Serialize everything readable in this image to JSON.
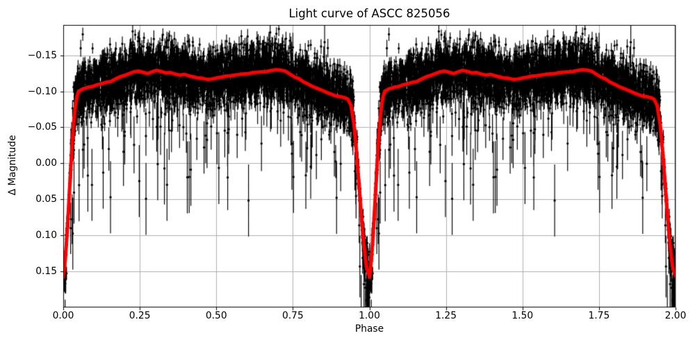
{
  "chart_data": {
    "type": "scatter",
    "title": "Light curve of ASCC 825056",
    "xlabel": "Phase",
    "ylabel": "Δ Magnitude",
    "xlim": [
      0.0,
      2.0
    ],
    "ylim": {
      "top": -0.192,
      "bottom": 0.2
    },
    "y_inverted": true,
    "grid": true,
    "background": "#ffffff",
    "grid_color": "#b0b0b0",
    "spine_color": "#000000",
    "xticks": {
      "values": [
        0.0,
        0.25,
        0.5,
        0.75,
        1.0,
        1.25,
        1.5,
        1.75,
        2.0
      ],
      "labels": [
        "0.00",
        "0.25",
        "0.50",
        "0.75",
        "1.00",
        "1.25",
        "1.50",
        "1.75",
        "2.00"
      ]
    },
    "yticks": {
      "values": [
        -0.15,
        -0.1,
        -0.05,
        0.0,
        0.05,
        0.1,
        0.15
      ],
      "labels": [
        "−0.15",
        "−0.10",
        "−0.05",
        "0.00",
        "0.05",
        "0.10",
        "0.15"
      ]
    },
    "series": [
      {
        "name": "observations",
        "type": "scatter_errorbar",
        "color": "#000000",
        "cycles": 2,
        "n_per_cycle": 4500,
        "seed": 12345,
        "noise_sigma": 0.019,
        "mid_sigma_scale": 0.6,
        "deep_sigma_scale": 0.8,
        "faint_outlier_fraction": 0.06,
        "faint_outlier_scale": 0.04,
        "bright_outlier_fraction": 0.008,
        "bright_outlier_scale": 0.015,
        "deep_tail_fraction": 0.3,
        "deep_tail_scale": 0.025,
        "errorbar_base": 0.007,
        "errorbar_jitter": 0.005,
        "errorbar_outlier_factor": 0.35,
        "errorbar_max": 0.05,
        "marker_radius": 1.7,
        "errorbar_width": 1.2
      },
      {
        "name": "smoothed light curve",
        "type": "line",
        "color": "#ff0000",
        "line_width": 5,
        "cycles": 2,
        "points": [
          [
            0.0,
            0.158
          ],
          [
            0.005,
            0.141
          ],
          [
            0.01,
            0.113
          ],
          [
            0.015,
            0.079
          ],
          [
            0.02,
            0.041
          ],
          [
            0.025,
            0.003
          ],
          [
            0.03,
            -0.033
          ],
          [
            0.035,
            -0.061
          ],
          [
            0.04,
            -0.081
          ],
          [
            0.045,
            -0.093
          ],
          [
            0.05,
            -0.1
          ],
          [
            0.065,
            -0.1035
          ],
          [
            0.08,
            -0.1055
          ],
          [
            0.095,
            -0.1065
          ],
          [
            0.11,
            -0.109
          ],
          [
            0.125,
            -0.1105
          ],
          [
            0.14,
            -0.1125
          ],
          [
            0.155,
            -0.1135
          ],
          [
            0.17,
            -0.117
          ],
          [
            0.185,
            -0.12
          ],
          [
            0.2,
            -0.122
          ],
          [
            0.215,
            -0.1245
          ],
          [
            0.23,
            -0.127
          ],
          [
            0.245,
            -0.128
          ],
          [
            0.26,
            -0.1265
          ],
          [
            0.275,
            -0.1245
          ],
          [
            0.29,
            -0.127
          ],
          [
            0.305,
            -0.129
          ],
          [
            0.32,
            -0.1275
          ],
          [
            0.335,
            -0.1255
          ],
          [
            0.35,
            -0.126
          ],
          [
            0.365,
            -0.124
          ],
          [
            0.38,
            -0.1225
          ],
          [
            0.395,
            -0.1235
          ],
          [
            0.41,
            -0.1215
          ],
          [
            0.425,
            -0.12
          ],
          [
            0.44,
            -0.1185
          ],
          [
            0.455,
            -0.118
          ],
          [
            0.47,
            -0.1165
          ],
          [
            0.485,
            -0.117
          ],
          [
            0.5,
            -0.1185
          ],
          [
            0.515,
            -0.1195
          ],
          [
            0.53,
            -0.121
          ],
          [
            0.545,
            -0.1215
          ],
          [
            0.56,
            -0.1225
          ],
          [
            0.575,
            -0.1235
          ],
          [
            0.59,
            -0.124
          ],
          [
            0.605,
            -0.1245
          ],
          [
            0.62,
            -0.126
          ],
          [
            0.635,
            -0.1265
          ],
          [
            0.65,
            -0.127
          ],
          [
            0.665,
            -0.1275
          ],
          [
            0.68,
            -0.129
          ],
          [
            0.695,
            -0.13
          ],
          [
            0.71,
            -0.1295
          ],
          [
            0.725,
            -0.128
          ],
          [
            0.74,
            -0.124
          ],
          [
            0.755,
            -0.12
          ],
          [
            0.77,
            -0.1175
          ],
          [
            0.785,
            -0.113
          ],
          [
            0.8,
            -0.11
          ],
          [
            0.815,
            -0.1065
          ],
          [
            0.83,
            -0.104
          ],
          [
            0.845,
            -0.1015
          ],
          [
            0.86,
            -0.0985
          ],
          [
            0.875,
            -0.096
          ],
          [
            0.89,
            -0.0935
          ],
          [
            0.905,
            -0.0925
          ],
          [
            0.92,
            -0.091
          ],
          [
            0.93,
            -0.089
          ],
          [
            0.94,
            -0.08
          ],
          [
            0.95,
            -0.053
          ],
          [
            0.96,
            -0.005
          ],
          [
            0.97,
            0.052
          ],
          [
            0.98,
            0.105
          ],
          [
            0.99,
            0.143
          ],
          [
            1.0,
            0.157
          ]
        ]
      }
    ]
  }
}
